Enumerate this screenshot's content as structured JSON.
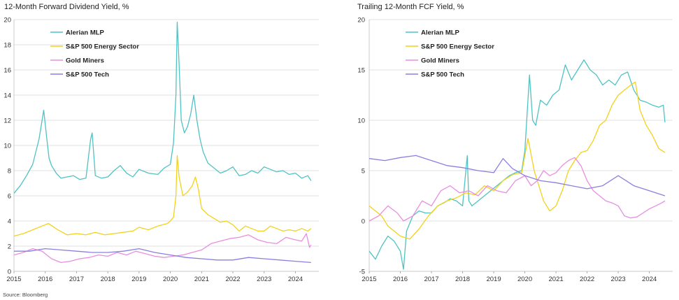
{
  "source": "Source: Bloomberg",
  "chart_data": [
    {
      "type": "line",
      "title": "12-Month Forward Dividend Yield, %",
      "xlim": [
        2015.0,
        2024.75
      ],
      "ylim": [
        0,
        20
      ],
      "yticks": [
        0,
        2,
        4,
        6,
        8,
        10,
        12,
        14,
        16,
        18,
        20
      ],
      "xticks": [
        2015,
        2016,
        2017,
        2018,
        2019,
        2020,
        2021,
        2022,
        2023,
        2024
      ],
      "grid": true,
      "legend_position": "top-left",
      "series": [
        {
          "name": "Alerian MLP",
          "color": "#4fc3c4",
          "x": [
            2015.0,
            2015.2,
            2015.4,
            2015.6,
            2015.8,
            2015.95,
            2016.05,
            2016.12,
            2016.2,
            2016.35,
            2016.5,
            2016.7,
            2016.9,
            2017.1,
            2017.3,
            2017.45,
            2017.5,
            2017.6,
            2017.8,
            2018.0,
            2018.2,
            2018.4,
            2018.6,
            2018.8,
            2019.0,
            2019.3,
            2019.6,
            2019.8,
            2020.0,
            2020.1,
            2020.18,
            2020.22,
            2020.28,
            2020.35,
            2020.45,
            2020.55,
            2020.65,
            2020.75,
            2020.85,
            2020.95,
            2021.05,
            2021.2,
            2021.4,
            2021.6,
            2021.8,
            2022.0,
            2022.2,
            2022.4,
            2022.6,
            2022.8,
            2023.0,
            2023.2,
            2023.4,
            2023.6,
            2023.8,
            2024.0,
            2024.2,
            2024.4,
            2024.5
          ],
          "values": [
            6.2,
            6.8,
            7.6,
            8.5,
            10.5,
            12.8,
            10.5,
            9.0,
            8.4,
            7.8,
            7.4,
            7.5,
            7.6,
            7.3,
            7.4,
            10.5,
            11.0,
            7.6,
            7.4,
            7.5,
            8.0,
            8.4,
            7.8,
            7.5,
            8.1,
            7.8,
            7.7,
            8.2,
            8.5,
            10.2,
            14.0,
            19.8,
            16.5,
            12.0,
            11.0,
            11.5,
            12.5,
            14.0,
            12.0,
            10.5,
            9.5,
            8.6,
            8.2,
            7.8,
            8.0,
            8.3,
            7.6,
            7.7,
            8.0,
            7.8,
            8.3,
            8.1,
            7.9,
            8.0,
            7.7,
            7.8,
            7.4,
            7.6,
            7.2
          ]
        },
        {
          "name": "S&P 500 Energy Sector",
          "color": "#f2d21a",
          "x": [
            2015.0,
            2015.3,
            2015.6,
            2015.9,
            2016.1,
            2016.4,
            2016.7,
            2017.0,
            2017.3,
            2017.6,
            2017.9,
            2018.2,
            2018.5,
            2018.8,
            2019.0,
            2019.3,
            2019.6,
            2019.9,
            2020.0,
            2020.1,
            2020.18,
            2020.22,
            2020.28,
            2020.4,
            2020.55,
            2020.7,
            2020.8,
            2020.9,
            2021.0,
            2021.2,
            2021.4,
            2021.6,
            2021.8,
            2022.0,
            2022.2,
            2022.4,
            2022.6,
            2022.8,
            2023.0,
            2023.2,
            2023.4,
            2023.6,
            2023.8,
            2024.0,
            2024.2,
            2024.4,
            2024.5
          ],
          "values": [
            2.8,
            3.0,
            3.3,
            3.6,
            3.8,
            3.3,
            2.9,
            3.0,
            2.9,
            3.1,
            2.9,
            3.0,
            3.1,
            3.2,
            3.5,
            3.3,
            3.6,
            3.8,
            4.0,
            4.3,
            6.0,
            9.2,
            7.5,
            6.0,
            6.3,
            6.8,
            7.5,
            6.5,
            5.0,
            4.5,
            4.2,
            3.9,
            4.0,
            3.7,
            3.2,
            3.6,
            3.4,
            3.2,
            3.2,
            3.6,
            3.4,
            3.2,
            3.3,
            3.2,
            3.4,
            3.2,
            3.4
          ]
        },
        {
          "name": "Gold Miners",
          "color": "#e88ee0",
          "x": [
            2015.0,
            2015.3,
            2015.6,
            2015.9,
            2016.2,
            2016.5,
            2016.8,
            2017.1,
            2017.4,
            2017.7,
            2018.0,
            2018.3,
            2018.6,
            2018.9,
            2019.2,
            2019.5,
            2019.8,
            2020.1,
            2020.4,
            2020.7,
            2021.0,
            2021.3,
            2021.6,
            2021.9,
            2022.2,
            2022.5,
            2022.8,
            2023.1,
            2023.4,
            2023.7,
            2024.0,
            2024.2,
            2024.35,
            2024.45,
            2024.5
          ],
          "values": [
            1.3,
            1.5,
            1.8,
            1.6,
            1.0,
            0.7,
            0.8,
            1.0,
            1.1,
            1.3,
            1.2,
            1.5,
            1.3,
            1.6,
            1.4,
            1.2,
            1.1,
            1.2,
            1.3,
            1.5,
            1.7,
            2.2,
            2.4,
            2.6,
            2.7,
            2.9,
            2.5,
            2.3,
            2.2,
            2.7,
            2.5,
            2.4,
            3.0,
            1.9,
            2.1
          ]
        },
        {
          "name": "S&P 500 Tech",
          "color": "#8a80e0",
          "x": [
            2015.0,
            2015.5,
            2016.0,
            2016.5,
            2017.0,
            2017.5,
            2018.0,
            2018.5,
            2019.0,
            2019.5,
            2020.0,
            2020.5,
            2021.0,
            2021.5,
            2022.0,
            2022.5,
            2023.0,
            2023.5,
            2024.0,
            2024.5
          ],
          "values": [
            1.6,
            1.6,
            1.8,
            1.7,
            1.6,
            1.5,
            1.5,
            1.6,
            1.8,
            1.5,
            1.3,
            1.1,
            1.0,
            0.9,
            0.9,
            1.1,
            1.0,
            0.9,
            0.8,
            0.7
          ]
        }
      ]
    },
    {
      "type": "line",
      "title": "Trailing 12-Month FCF Yield, %",
      "xlim": [
        2015.0,
        2024.75
      ],
      "ylim": [
        -5,
        20
      ],
      "yticks": [
        -5,
        0,
        5,
        10,
        15,
        20
      ],
      "xticks": [
        2015,
        2016,
        2017,
        2018,
        2019,
        2020,
        2021,
        2022,
        2023,
        2024
      ],
      "grid": true,
      "legend_position": "top-left",
      "series": [
        {
          "name": "Alerian MLP",
          "color": "#4fc3c4",
          "x": [
            2015.0,
            2015.2,
            2015.4,
            2015.6,
            2015.8,
            2016.0,
            2016.1,
            2016.2,
            2016.4,
            2016.6,
            2016.8,
            2017.0,
            2017.2,
            2017.4,
            2017.6,
            2017.8,
            2018.0,
            2018.15,
            2018.2,
            2018.3,
            2018.5,
            2018.7,
            2018.9,
            2019.1,
            2019.3,
            2019.5,
            2019.7,
            2019.9,
            2020.0,
            2020.15,
            2020.25,
            2020.35,
            2020.5,
            2020.7,
            2020.9,
            2021.1,
            2021.3,
            2021.5,
            2021.7,
            2021.9,
            2022.1,
            2022.3,
            2022.5,
            2022.7,
            2022.9,
            2023.1,
            2023.3,
            2023.5,
            2023.7,
            2023.9,
            2024.1,
            2024.3,
            2024.45,
            2024.5
          ],
          "values": [
            -3.0,
            -3.8,
            -2.5,
            -1.5,
            -2.0,
            -3.0,
            -4.8,
            -1.0,
            0.5,
            1.0,
            0.8,
            0.8,
            1.5,
            1.8,
            2.2,
            2.0,
            1.5,
            6.5,
            2.0,
            1.5,
            2.0,
            2.5,
            3.0,
            3.5,
            4.0,
            4.5,
            4.8,
            5.0,
            7.0,
            14.5,
            10.0,
            9.5,
            12.0,
            11.5,
            12.5,
            13.0,
            15.5,
            14.0,
            15.0,
            16.0,
            15.0,
            14.5,
            13.5,
            14.0,
            13.5,
            14.5,
            14.8,
            13.0,
            12.0,
            11.8,
            11.5,
            11.3,
            11.5,
            9.8
          ]
        },
        {
          "name": "S&P 500 Energy Sector",
          "color": "#f2d21a",
          "x": [
            2015.0,
            2015.2,
            2015.4,
            2015.6,
            2015.8,
            2016.0,
            2016.3,
            2016.6,
            2016.9,
            2017.2,
            2017.5,
            2017.8,
            2018.1,
            2018.4,
            2018.7,
            2019.0,
            2019.3,
            2019.6,
            2019.9,
            2020.1,
            2020.3,
            2020.45,
            2020.6,
            2020.8,
            2021.0,
            2021.2,
            2021.4,
            2021.6,
            2021.8,
            2022.0,
            2022.2,
            2022.4,
            2022.6,
            2022.8,
            2023.0,
            2023.2,
            2023.4,
            2023.55,
            2023.7,
            2023.9,
            2024.1,
            2024.3,
            2024.5
          ],
          "values": [
            1.5,
            1.0,
            0.5,
            -0.5,
            -1.0,
            -1.5,
            -1.8,
            -0.8,
            0.5,
            1.5,
            2.0,
            2.3,
            2.8,
            2.6,
            3.5,
            3.0,
            4.0,
            4.6,
            4.8,
            8.2,
            5.0,
            3.5,
            2.0,
            1.0,
            1.5,
            3.0,
            5.0,
            6.0,
            6.8,
            7.0,
            8.0,
            9.5,
            10.0,
            11.5,
            12.5,
            13.0,
            13.5,
            13.8,
            11.0,
            9.5,
            8.5,
            7.2,
            6.8
          ]
        },
        {
          "name": "Gold Miners",
          "color": "#e88ee0",
          "x": [
            2015.0,
            2015.3,
            2015.6,
            2015.9,
            2016.1,
            2016.4,
            2016.7,
            2017.0,
            2017.3,
            2017.6,
            2017.9,
            2018.2,
            2018.5,
            2018.8,
            2019.1,
            2019.4,
            2019.7,
            2020.0,
            2020.2,
            2020.4,
            2020.6,
            2020.8,
            2021.0,
            2021.2,
            2021.4,
            2021.6,
            2021.8,
            2022.0,
            2022.2,
            2022.4,
            2022.6,
            2022.8,
            2023.0,
            2023.2,
            2023.4,
            2023.6,
            2023.8,
            2024.0,
            2024.2,
            2024.4,
            2024.5
          ],
          "values": [
            0.0,
            0.5,
            1.5,
            0.8,
            0.0,
            0.5,
            2.0,
            1.5,
            3.0,
            3.5,
            2.8,
            3.0,
            2.5,
            3.5,
            3.0,
            2.8,
            4.0,
            4.5,
            3.5,
            4.0,
            5.0,
            4.5,
            4.8,
            5.5,
            6.0,
            6.3,
            5.5,
            4.0,
            3.0,
            2.5,
            2.0,
            1.8,
            1.5,
            0.5,
            0.3,
            0.4,
            0.8,
            1.2,
            1.5,
            1.8,
            2.0
          ]
        },
        {
          "name": "S&P 500 Tech",
          "color": "#8a80e0",
          "x": [
            2015.0,
            2015.5,
            2016.0,
            2016.5,
            2017.0,
            2017.5,
            2018.0,
            2018.5,
            2019.0,
            2019.3,
            2019.6,
            2020.0,
            2020.5,
            2021.0,
            2021.5,
            2022.0,
            2022.5,
            2023.0,
            2023.5,
            2024.0,
            2024.5
          ],
          "values": [
            6.2,
            6.0,
            6.3,
            6.5,
            6.0,
            5.5,
            5.3,
            5.0,
            4.8,
            6.2,
            5.2,
            4.5,
            4.0,
            3.8,
            3.5,
            3.2,
            3.5,
            4.5,
            3.5,
            3.0,
            2.5
          ]
        }
      ]
    }
  ]
}
